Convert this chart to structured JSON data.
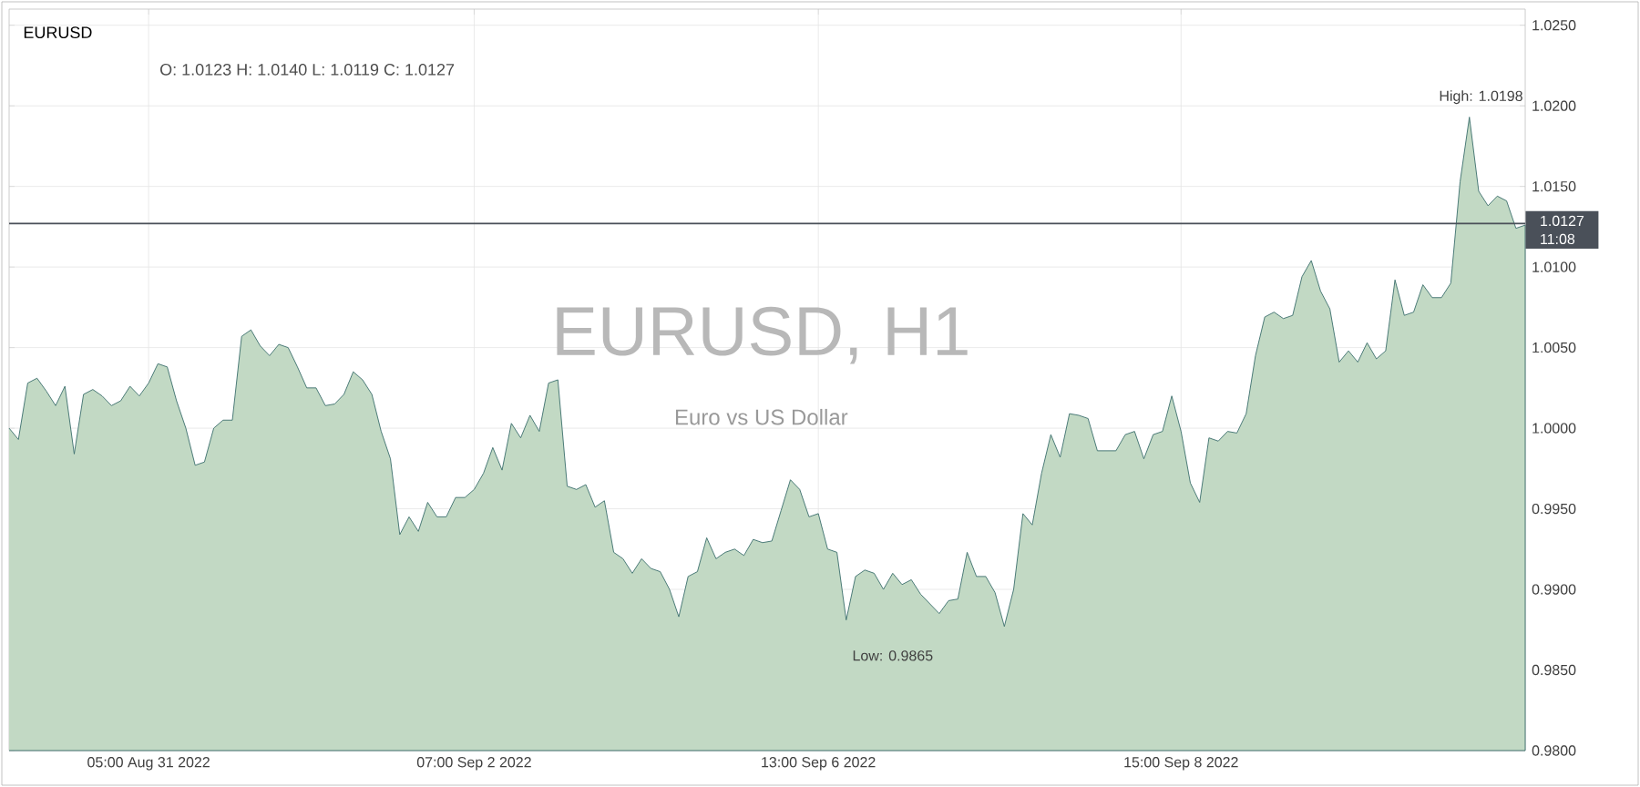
{
  "chart_data": {
    "type": "area",
    "title": "EURUSD",
    "subtitle": "O: 1.0123  H: 1.0140  L: 1.0119  C: 1.0127",
    "annotations": [
      "EURUSD, H1",
      "Euro vs US Dollar",
      "High: 1.0198",
      "Low: 0.9865",
      "11:08"
    ],
    "categories": [
      null,
      null,
      null,
      null,
      null,
      null,
      null,
      null,
      null,
      null,
      null,
      null,
      null,
      null,
      null,
      "05:00 Aug 31 2022",
      null,
      null,
      null,
      null,
      null,
      null,
      null,
      null,
      null,
      null,
      null,
      null,
      null,
      null,
      null,
      null,
      null,
      null,
      null,
      null,
      null,
      null,
      null,
      null,
      null,
      null,
      null,
      null,
      null,
      null,
      null,
      null,
      null,
      null,
      "07:00 Sep 2 2022",
      null,
      null,
      null,
      null,
      null,
      null,
      null,
      null,
      null,
      null,
      null,
      null,
      null,
      null,
      null,
      null,
      null,
      null,
      null,
      null,
      null,
      null,
      null,
      null,
      null,
      null,
      null,
      null,
      null,
      null,
      null,
      null,
      null,
      null,
      null,
      null,
      "13:00 Sep 6 2022",
      null,
      null,
      null,
      null,
      null,
      null,
      null,
      null,
      null,
      null,
      null,
      null,
      null,
      null,
      null,
      null,
      null,
      null,
      null,
      null,
      null,
      null,
      null,
      null,
      null,
      null,
      null,
      null,
      null,
      null,
      null,
      null,
      null,
      null,
      null,
      null,
      null,
      null,
      "15:00 Sep 8 2022",
      null,
      null,
      null,
      null,
      null,
      null,
      null,
      null,
      null,
      null,
      null,
      null,
      null,
      null,
      null,
      null,
      null,
      null,
      null,
      null,
      null,
      null,
      null,
      null,
      null,
      null,
      null,
      null,
      null,
      null,
      null,
      null,
      null,
      null,
      null,
      null,
      null
    ],
    "series": [
      {
        "color": "#3b6e6c",
        "values": [
          1.0,
          0.9993,
          1.0028,
          1.0031,
          1.0023,
          1.0014,
          1.0026,
          0.9984,
          1.0021,
          1.0024,
          1.002,
          1.0014,
          1.0017,
          1.0026,
          1.002,
          1.0028,
          1.004,
          1.0038,
          1.0017,
          1.0,
          0.9977,
          0.9979,
          1.0,
          1.0005,
          1.0005,
          1.0057,
          1.0061,
          1.0051,
          1.0045,
          1.0052,
          1.005,
          1.0038,
          1.0025,
          1.0025,
          1.0014,
          1.0015,
          1.0021,
          1.0035,
          1.003,
          1.0021,
          0.9998,
          0.9981,
          0.9934,
          0.9945,
          0.9936,
          0.9954,
          0.9945,
          0.9945,
          0.9957,
          0.9957,
          0.9962,
          0.9972,
          0.9988,
          0.9974,
          1.0003,
          0.9994,
          1.0008,
          0.9998,
          1.0028,
          1.003,
          0.9964,
          0.9962,
          0.9965,
          0.9951,
          0.9955,
          0.9923,
          0.9919,
          0.991,
          0.9919,
          0.9913,
          0.9911,
          0.99,
          0.9883,
          0.9908,
          0.9911,
          0.9932,
          0.9919,
          0.9923,
          0.9925,
          0.9921,
          0.9931,
          0.9929,
          0.993,
          0.9949,
          0.9968,
          0.9962,
          0.9945,
          0.9947,
          0.9925,
          0.9923,
          0.9881,
          0.9908,
          0.9912,
          0.991,
          0.99,
          0.991,
          0.9903,
          0.9906,
          0.9897,
          0.9891,
          0.9885,
          0.9893,
          0.9894,
          0.9923,
          0.9908,
          0.9908,
          0.9898,
          0.9877,
          0.99,
          0.9947,
          0.994,
          0.9972,
          0.9996,
          0.9982,
          1.0009,
          1.0008,
          1.0006,
          0.9986,
          0.9986,
          0.9986,
          0.9996,
          0.9998,
          0.9981,
          0.9996,
          0.9998,
          1.002,
          0.9998,
          0.9966,
          0.9954,
          0.9994,
          0.9992,
          0.9998,
          0.9997,
          1.0009,
          1.0045,
          1.0069,
          1.0072,
          1.0068,
          1.007,
          1.0094,
          1.0104,
          1.0085,
          1.0074,
          1.0041,
          1.0048,
          1.0041,
          1.0053,
          1.0043,
          1.0048,
          1.0092,
          1.007,
          1.0072,
          1.0089,
          1.0081,
          1.0081,
          1.009,
          1.0153,
          1.0193,
          1.0147,
          1.0138,
          1.0144,
          1.0141,
          1.0124,
          1.0126
        ]
      }
    ],
    "ylim": [
      0.98,
      1.026
    ],
    "yticks": [
      {
        "value": 0.98,
        "label": "0.9800"
      },
      {
        "value": 0.985,
        "label": "0.9850"
      },
      {
        "value": 0.99,
        "label": "0.9900"
      },
      {
        "value": 0.995,
        "label": "0.9950"
      },
      {
        "value": 1.0,
        "label": "1.0000"
      },
      {
        "value": 1.005,
        "label": "1.0050"
      },
      {
        "value": 1.01,
        "label": "1.0100"
      },
      {
        "value": 1.015,
        "label": "1.0150"
      },
      {
        "value": 1.02,
        "label": "1.0200"
      },
      {
        "value": 1.025,
        "label": "1.0250"
      }
    ],
    "ref_lines": [
      {
        "axis": "y",
        "value": 1.0127,
        "label": "1.0127",
        "color": "#4a5059"
      }
    ],
    "grid": true
  }
}
